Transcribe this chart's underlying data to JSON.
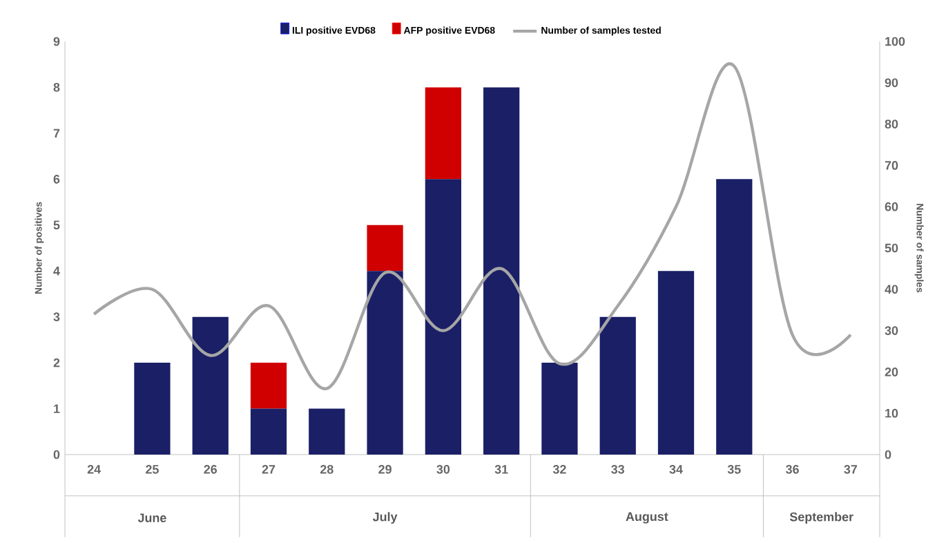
{
  "chart_data": {
    "type": "bar",
    "stacked": true,
    "legend": "top",
    "grid": false,
    "categories": [
      "24",
      "25",
      "26",
      "27",
      "28",
      "29",
      "30",
      "31",
      "32",
      "33",
      "34",
      "35",
      "36",
      "37"
    ],
    "series": [
      {
        "name": "ILI positive EVD68",
        "color": "#1a1f66",
        "values": [
          0,
          2,
          3,
          1,
          1,
          4,
          6,
          8,
          2,
          3,
          4,
          6,
          0,
          0
        ]
      },
      {
        "name": "AFP positive EVD68",
        "color": "#d00000",
        "values": [
          0,
          0,
          0,
          1,
          0,
          1,
          2,
          0,
          0,
          0,
          0,
          0,
          0,
          0
        ]
      },
      {
        "name": "Number of samples tested",
        "type": "line",
        "axis": "y2",
        "color": "#a6a6a6",
        "marker": "none",
        "line_style": "solid",
        "values": [
          34,
          40,
          24,
          36,
          16,
          44,
          30,
          45,
          22,
          36,
          60,
          94,
          29,
          29
        ]
      }
    ],
    "ylabel": "Number of positives",
    "y2label": "Number of samples",
    "ylim": [
      0,
      9
    ],
    "yticks": [
      0,
      1,
      2,
      3,
      4,
      5,
      6,
      7,
      8,
      9
    ],
    "y2lim": [
      0,
      100
    ],
    "y2ticks": [
      0,
      10,
      20,
      30,
      40,
      50,
      60,
      70,
      80,
      90,
      100
    ],
    "annotations": [
      "June",
      "July",
      "August",
      "September"
    ]
  }
}
